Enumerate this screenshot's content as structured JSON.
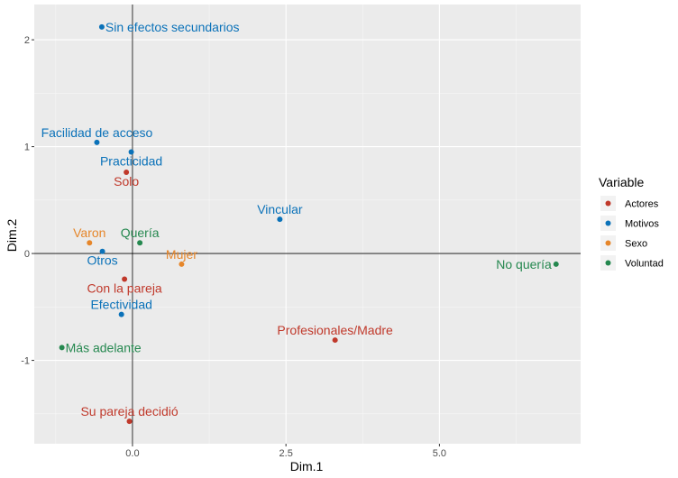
{
  "chart_data": {
    "type": "scatter",
    "title": "",
    "xlabel": "Dim.1",
    "ylabel": "Dim.2",
    "xlim": [
      -1.6,
      7.3
    ],
    "ylim": [
      -1.78,
      2.33
    ],
    "xticks": [
      {
        "value": 0,
        "label": "0.0"
      },
      {
        "value": 2.5,
        "label": "2.5"
      },
      {
        "value": 5,
        "label": "5.0"
      }
    ],
    "yticks": [
      {
        "value": -1,
        "label": "-1"
      },
      {
        "value": 0,
        "label": "0"
      },
      {
        "value": 1,
        "label": "1"
      },
      {
        "value": 2,
        "label": "2"
      }
    ],
    "x_minor_grid": [
      -1.25,
      1.25,
      3.75,
      6.25
    ],
    "y_minor_grid": [
      -1.5,
      -0.5,
      0.5,
      1.5
    ],
    "reference_lines": {
      "x": 0,
      "y": 0
    },
    "grid": true,
    "legend": {
      "title": "Variable",
      "placement": "right",
      "entries": [
        {
          "name": "Actores",
          "color": "#c0392b"
        },
        {
          "name": "Motivos",
          "color": "#0b72b9"
        },
        {
          "name": "Sexo",
          "color": "#e6862a"
        },
        {
          "name": "Voluntad",
          "color": "#25884f"
        }
      ]
    },
    "points": [
      {
        "label": "Sin efectos secundarios",
        "group": "Motivos",
        "x": -0.5,
        "y": 2.12,
        "anchor": "right"
      },
      {
        "label": "Facilidad de acceso",
        "group": "Motivos",
        "x": -0.58,
        "y": 1.04,
        "anchor": "above"
      },
      {
        "label": "Practicidad",
        "group": "Motivos",
        "x": -0.02,
        "y": 0.95,
        "anchor": "below"
      },
      {
        "label": "Solo",
        "group": "Actores",
        "x": -0.1,
        "y": 0.76,
        "anchor": "below"
      },
      {
        "label": "Vincular",
        "group": "Motivos",
        "x": 2.4,
        "y": 0.32,
        "anchor": "above"
      },
      {
        "label": "Varon",
        "group": "Sexo",
        "x": -0.7,
        "y": 0.1,
        "anchor": "above"
      },
      {
        "label": "Quería",
        "group": "Voluntad",
        "x": 0.12,
        "y": 0.1,
        "anchor": "above"
      },
      {
        "label": "Otros",
        "group": "Motivos",
        "x": -0.49,
        "y": 0.02,
        "anchor": "below"
      },
      {
        "label": "Mujer",
        "group": "Sexo",
        "x": 0.8,
        "y": -0.1,
        "anchor": "above"
      },
      {
        "label": "No quería",
        "group": "Voluntad",
        "x": 6.9,
        "y": -0.1,
        "anchor": "left"
      },
      {
        "label": "Con la pareja",
        "group": "Actores",
        "x": -0.13,
        "y": -0.24,
        "anchor": "below"
      },
      {
        "label": "Efectividad",
        "group": "Motivos",
        "x": -0.18,
        "y": -0.57,
        "anchor": "above"
      },
      {
        "label": "Profesionales/Madre",
        "group": "Actores",
        "x": 3.3,
        "y": -0.81,
        "anchor": "above"
      },
      {
        "label": "Más adelante",
        "group": "Voluntad",
        "x": -1.15,
        "y": -0.88,
        "anchor": "right"
      },
      {
        "label": "Su pareja decidió",
        "group": "Actores",
        "x": -0.05,
        "y": -1.57,
        "anchor": "above"
      }
    ]
  }
}
